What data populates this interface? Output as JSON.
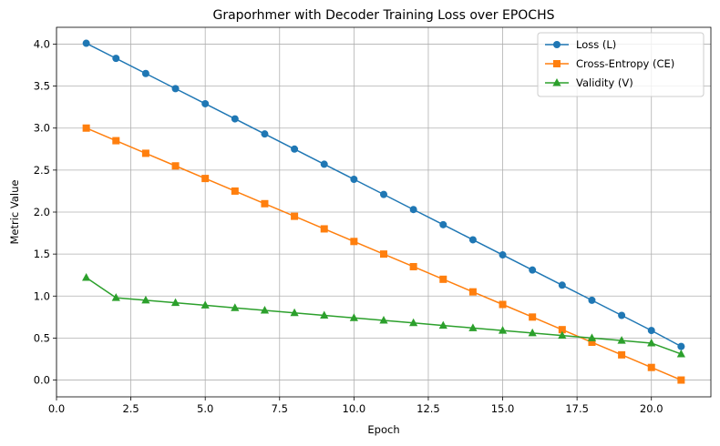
{
  "chart_data": {
    "type": "line",
    "title": "Graporhmer with Decoder Training Loss over EPOCHS",
    "xlabel": "Epoch",
    "ylabel": "Metric Value",
    "xlim": [
      0,
      22
    ],
    "ylim": [
      -0.2,
      4.2
    ],
    "xticks": [
      0.0,
      2.5,
      5.0,
      7.5,
      10.0,
      12.5,
      15.0,
      17.5,
      20.0
    ],
    "xtick_labels": [
      "0.0",
      "2.5",
      "5.0",
      "7.5",
      "10.0",
      "12.5",
      "15.0",
      "17.5",
      "20.0"
    ],
    "yticks": [
      0.0,
      0.5,
      1.0,
      1.5,
      2.0,
      2.5,
      3.0,
      3.5,
      4.0
    ],
    "ytick_labels": [
      "0.0",
      "0.5",
      "1.0",
      "1.5",
      "2.0",
      "2.5",
      "3.0",
      "3.5",
      "4.0"
    ],
    "grid": true,
    "legend_position": "top-right",
    "x": [
      1,
      2,
      3,
      4,
      5,
      6,
      7,
      8,
      9,
      10,
      11,
      12,
      13,
      14,
      15,
      16,
      17,
      18,
      19,
      20,
      21
    ],
    "series": [
      {
        "name": "Loss (L)",
        "color": "#1f77b4",
        "marker": "circle",
        "values": [
          4.01,
          3.83,
          3.65,
          3.47,
          3.29,
          3.11,
          2.93,
          2.75,
          2.57,
          2.39,
          2.21,
          2.03,
          1.85,
          1.67,
          1.49,
          1.31,
          1.13,
          0.95,
          0.77,
          0.59,
          0.4
        ]
      },
      {
        "name": "Cross-Entropy (CE)",
        "color": "#ff7f0e",
        "marker": "square",
        "values": [
          3.0,
          2.85,
          2.7,
          2.55,
          2.4,
          2.25,
          2.1,
          1.95,
          1.8,
          1.65,
          1.5,
          1.35,
          1.2,
          1.05,
          0.9,
          0.75,
          0.6,
          0.45,
          0.3,
          0.15,
          0.0
        ]
      },
      {
        "name": "Validity (V)",
        "color": "#2ca02c",
        "marker": "triangle",
        "values": [
          1.22,
          0.98,
          0.95,
          0.92,
          0.89,
          0.86,
          0.83,
          0.8,
          0.77,
          0.74,
          0.71,
          0.68,
          0.65,
          0.62,
          0.59,
          0.56,
          0.53,
          0.5,
          0.47,
          0.44,
          0.31
        ]
      }
    ]
  }
}
